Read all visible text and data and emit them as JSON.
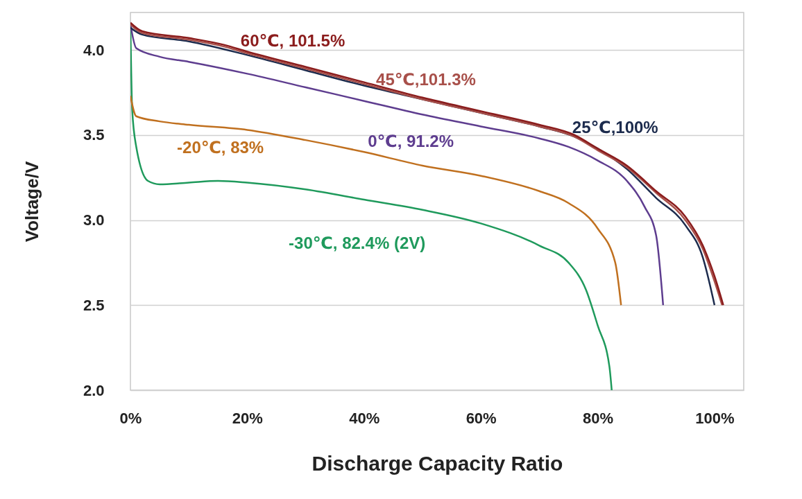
{
  "chart_data": {
    "type": "line",
    "xlabel": "Discharge Capacity Ratio",
    "ylabel": "Voltage/V",
    "xlim": [
      0,
      105
    ],
    "ylim": [
      2,
      4.22
    ],
    "xticks": [
      {
        "value": 0,
        "label": "0%"
      },
      {
        "value": 20,
        "label": "20%"
      },
      {
        "value": 40,
        "label": "40%"
      },
      {
        "value": 60,
        "label": "60%"
      },
      {
        "value": 80,
        "label": "80%"
      },
      {
        "value": 100,
        "label": "100%"
      }
    ],
    "yticks": [
      {
        "value": 2,
        "label": "2.0"
      },
      {
        "value": 2.5,
        "label": "2.5"
      },
      {
        "value": 3,
        "label": "3.0"
      },
      {
        "value": 3.5,
        "label": "3.5"
      },
      {
        "value": 4,
        "label": "4.0"
      }
    ],
    "grid": "y",
    "marker": "none",
    "line_style": "solid",
    "series": [
      {
        "name": "60℃,  101.5%",
        "color": "#8b1c1c",
        "x": [
          0,
          2,
          10,
          16,
          20,
          30,
          40,
          50,
          60,
          70,
          76,
          80,
          85,
          90,
          95,
          98,
          100,
          101.5
        ],
        "values": [
          4.16,
          4.11,
          4.07,
          4.03,
          3.99,
          3.9,
          3.81,
          3.72,
          3.64,
          3.56,
          3.5,
          3.42,
          3.32,
          3.17,
          3.02,
          2.85,
          2.67,
          2.5
        ]
      },
      {
        "name": "45℃,101.3%",
        "color": "#a8504a",
        "x": [
          0,
          2,
          10,
          16,
          20,
          30,
          40,
          50,
          60,
          70,
          76,
          80,
          85,
          90,
          95,
          98,
          100,
          101.3
        ],
        "values": [
          4.15,
          4.1,
          4.06,
          4.02,
          3.98,
          3.89,
          3.8,
          3.71,
          3.63,
          3.55,
          3.49,
          3.41,
          3.31,
          3.16,
          3.0,
          2.83,
          2.64,
          2.5
        ]
      },
      {
        "name": "25℃,100%",
        "color": "#1c2b4d",
        "x": [
          0,
          2,
          10,
          20,
          30,
          40,
          50,
          60,
          70,
          76,
          80,
          85,
          90,
          95,
          98,
          100
        ],
        "values": [
          4.13,
          4.09,
          4.05,
          3.97,
          3.88,
          3.79,
          3.71,
          3.63,
          3.55,
          3.49,
          3.42,
          3.3,
          3.13,
          2.97,
          2.78,
          2.5
        ]
      },
      {
        "name": "0℃, 91.2%",
        "color": "#5e3d8f",
        "x": [
          0,
          1,
          5,
          10,
          20,
          30,
          40,
          50,
          60,
          70,
          75,
          80,
          85,
          88,
          90,
          91.2
        ],
        "values": [
          4.15,
          4.01,
          3.96,
          3.93,
          3.86,
          3.78,
          3.7,
          3.62,
          3.55,
          3.48,
          3.43,
          3.35,
          3.23,
          3.08,
          2.91,
          2.5
        ]
      },
      {
        "name": "-20℃, 83%",
        "color": "#c0701f",
        "x": [
          0,
          1,
          5,
          10,
          20,
          30,
          40,
          50,
          60,
          70,
          75,
          80,
          83,
          84
        ],
        "values": [
          3.73,
          3.61,
          3.58,
          3.56,
          3.53,
          3.47,
          3.4,
          3.32,
          3.26,
          3.17,
          3.1,
          2.95,
          2.75,
          2.5
        ]
      },
      {
        "name": "-30℃, 82.4% (2V)",
        "color": "#1f9a5c",
        "x": [
          0,
          0.3,
          1,
          3,
          5,
          10,
          15,
          20,
          30,
          40,
          50,
          60,
          70,
          75,
          78,
          80,
          82,
          82.4
        ],
        "values": [
          4.15,
          3.65,
          3.43,
          3.23,
          3.21,
          3.22,
          3.23,
          3.22,
          3.18,
          3.12,
          3.06,
          2.98,
          2.85,
          2.75,
          2.59,
          2.38,
          2.14,
          2.0
        ]
      }
    ]
  }
}
